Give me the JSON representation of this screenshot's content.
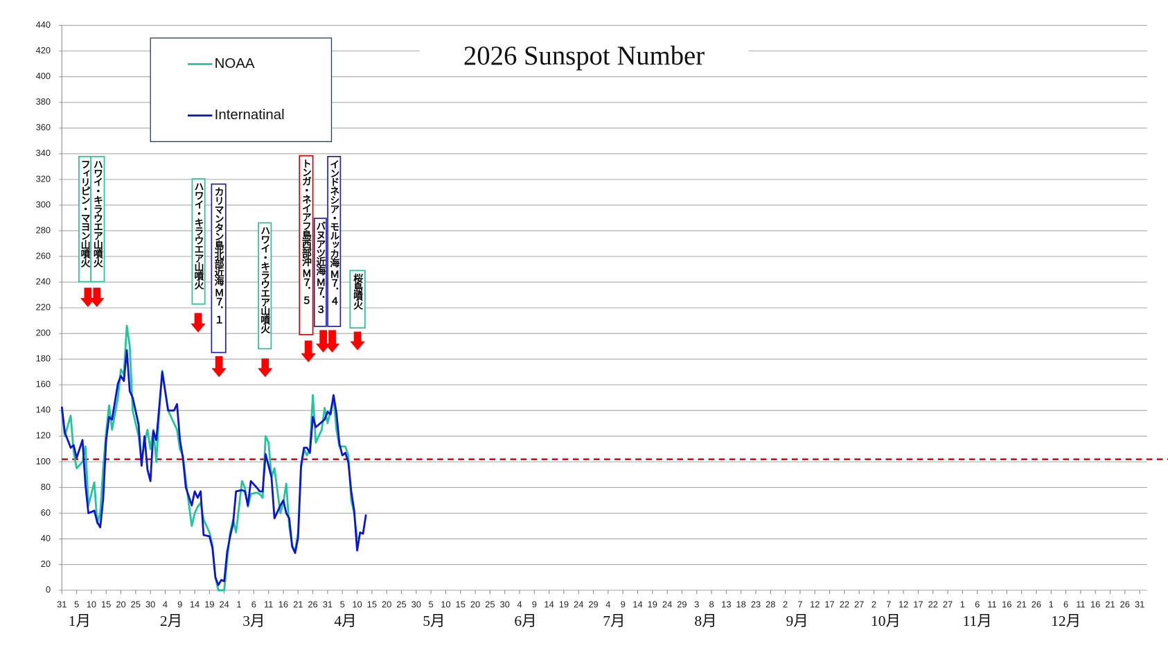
{
  "chart_data": {
    "type": "line",
    "title": "2026 Sunspot Number",
    "x": [
      0,
      1,
      3,
      4,
      5,
      7,
      8,
      9,
      11,
      12,
      13,
      14,
      15,
      16,
      17,
      19,
      20,
      21,
      22,
      23,
      24,
      26,
      27,
      28,
      29,
      30,
      31,
      32,
      33,
      34,
      36,
      38,
      39,
      40,
      41,
      42,
      44,
      45,
      46,
      47,
      48,
      50,
      51,
      52,
      53,
      54,
      55,
      56,
      57,
      58,
      59,
      61,
      62,
      63,
      64,
      66,
      67,
      68,
      69,
      70,
      71,
      72,
      74,
      75,
      76,
      77,
      78,
      79,
      80,
      81,
      82,
      83,
      84,
      85,
      86,
      88,
      89,
      90,
      91,
      92,
      93,
      94,
      95,
      96,
      97,
      98,
      99,
      100,
      101,
      102,
      103
    ],
    "series": [
      {
        "name": "NOAA",
        "color": "#1ec69a",
        "values": [
          140,
          120,
          136,
          108,
          95,
          100,
          112,
          66,
          84,
          52,
          60,
          95,
          123,
          144,
          125,
          150,
          172,
          168,
          206,
          190,
          140,
          120,
          100,
          115,
          125,
          110,
          125,
          100,
          140,
          171,
          140,
          130,
          125,
          110,
          105,
          85,
          50,
          60,
          65,
          68,
          55,
          45,
          35,
          10,
          0,
          0,
          0,
          25,
          45,
          55,
          45,
          85,
          80,
          65,
          75,
          76,
          75,
          72,
          120,
          115,
          88,
          95,
          60,
          68,
          83,
          50,
          35,
          30,
          45,
          95,
          110,
          105,
          110,
          152,
          115,
          125,
          142,
          130,
          140,
          150,
          125,
          112,
          112,
          112,
          105,
          70,
          60,
          40,
          null,
          null,
          null
        ]
      },
      {
        "name": "Internatinal",
        "color": "#0a14d6",
        "values": [
          143,
          123,
          111,
          113,
          103,
          117,
          82,
          60,
          62,
          53,
          49,
          71,
          117,
          135,
          133,
          161,
          167,
          163,
          187,
          155,
          150,
          129,
          97,
          120,
          94,
          85,
          124,
          117,
          143,
          170,
          140,
          140,
          145,
          117,
          103,
          80,
          66,
          77,
          72,
          77,
          43,
          42,
          33,
          10,
          4,
          8,
          7,
          30,
          42,
          52,
          77,
          78,
          77,
          66,
          85,
          80,
          77,
          77,
          106,
          97,
          88,
          56,
          66,
          70,
          60,
          56,
          34,
          29,
          41,
          97,
          111,
          111,
          107,
          135,
          127,
          131,
          133,
          139,
          137,
          152,
          138,
          114,
          105,
          107,
          100,
          77,
          62,
          31,
          45,
          44,
          59
        ]
      }
    ],
    "xlim": [
      0,
      365
    ],
    "xticks": [
      {
        "value": 0,
        "label": "31"
      },
      {
        "value": 5,
        "label": "5"
      },
      {
        "value": 10,
        "label": "10"
      },
      {
        "value": 15,
        "label": "15"
      },
      {
        "value": 20,
        "label": "20"
      },
      {
        "value": 25,
        "label": "25"
      },
      {
        "value": 30,
        "label": "30"
      },
      {
        "value": 35,
        "label": "4"
      },
      {
        "value": 40,
        "label": "9"
      },
      {
        "value": 45,
        "label": "14"
      },
      {
        "value": 50,
        "label": "19"
      },
      {
        "value": 55,
        "label": "24"
      },
      {
        "value": 60,
        "label": "1"
      },
      {
        "value": 65,
        "label": "6"
      },
      {
        "value": 70,
        "label": "11"
      },
      {
        "value": 75,
        "label": "16"
      },
      {
        "value": 80,
        "label": "21"
      },
      {
        "value": 85,
        "label": "26"
      },
      {
        "value": 90,
        "label": "31"
      },
      {
        "value": 95,
        "label": "5"
      },
      {
        "value": 100,
        "label": "10"
      },
      {
        "value": 105,
        "label": "15"
      },
      {
        "value": 110,
        "label": "20"
      },
      {
        "value": 115,
        "label": "25"
      },
      {
        "value": 120,
        "label": "30"
      },
      {
        "value": 125,
        "label": "5"
      },
      {
        "value": 130,
        "label": "10"
      },
      {
        "value": 135,
        "label": "15"
      },
      {
        "value": 140,
        "label": "20"
      },
      {
        "value": 145,
        "label": "25"
      },
      {
        "value": 150,
        "label": "30"
      },
      {
        "value": 155,
        "label": "4"
      },
      {
        "value": 160,
        "label": "9"
      },
      {
        "value": 165,
        "label": "14"
      },
      {
        "value": 170,
        "label": "19"
      },
      {
        "value": 175,
        "label": "24"
      },
      {
        "value": 180,
        "label": "29"
      },
      {
        "value": 185,
        "label": "4"
      },
      {
        "value": 190,
        "label": "9"
      },
      {
        "value": 195,
        "label": "14"
      },
      {
        "value": 200,
        "label": "19"
      },
      {
        "value": 205,
        "label": "24"
      },
      {
        "value": 210,
        "label": "29"
      },
      {
        "value": 215,
        "label": "3"
      },
      {
        "value": 220,
        "label": "8"
      },
      {
        "value": 225,
        "label": "13"
      },
      {
        "value": 230,
        "label": "18"
      },
      {
        "value": 235,
        "label": "23"
      },
      {
        "value": 240,
        "label": "28"
      },
      {
        "value": 245,
        "label": "2"
      },
      {
        "value": 250,
        "label": "7"
      },
      {
        "value": 255,
        "label": "12"
      },
      {
        "value": 260,
        "label": "17"
      },
      {
        "value": 265,
        "label": "22"
      },
      {
        "value": 270,
        "label": "27"
      },
      {
        "value": 275,
        "label": "2"
      },
      {
        "value": 280,
        "label": "7"
      },
      {
        "value": 285,
        "label": "12"
      },
      {
        "value": 290,
        "label": "17"
      },
      {
        "value": 295,
        "label": "22"
      },
      {
        "value": 300,
        "label": "27"
      },
      {
        "value": 305,
        "label": "1"
      },
      {
        "value": 310,
        "label": "6"
      },
      {
        "value": 315,
        "label": "11"
      },
      {
        "value": 320,
        "label": "16"
      },
      {
        "value": 325,
        "label": "21"
      },
      {
        "value": 330,
        "label": "26"
      },
      {
        "value": 335,
        "label": "1"
      },
      {
        "value": 340,
        "label": "6"
      },
      {
        "value": 345,
        "label": "11"
      },
      {
        "value": 350,
        "label": "16"
      },
      {
        "value": 355,
        "label": "21"
      },
      {
        "value": 360,
        "label": "26"
      },
      {
        "value": 365,
        "label": "31"
      }
    ],
    "months": [
      "1月",
      "2月",
      "3月",
      "4月",
      "5月",
      "6月",
      "7月",
      "8月",
      "9月",
      "10月",
      "11月",
      "12月"
    ],
    "ylim": [
      0,
      440
    ],
    "yticks": [
      0,
      20,
      40,
      60,
      80,
      100,
      120,
      140,
      160,
      180,
      200,
      220,
      240,
      260,
      280,
      300,
      320,
      340,
      360,
      380,
      400,
      420,
      440
    ],
    "grid": true,
    "reference_line": {
      "value": 102,
      "color": "#ff0000"
    },
    "annotations": [
      {
        "text": "フィリピン・マヨン山噴火",
        "color": "#1ec69a"
      },
      {
        "text": "ハワイ・キラウエア山噴火",
        "color": "#1ec69a"
      },
      {
        "text": "ハワイ・キラウエア山噴火",
        "color": "#1ec69a"
      },
      {
        "text": "カリマンタン島北部近海 Ｍ７．１",
        "color": "#2020c0"
      },
      {
        "text": "ハワイ・キラウエア山噴火",
        "color": "#1ec69a"
      },
      {
        "text": "トンガ・ネイアフ島西部沖 Ｍ７．５",
        "color": "#e00000"
      },
      {
        "text": "バヌアツ近海 Ｍ７．３",
        "color": "#2020c0"
      },
      {
        "text": "インドネシア・モルッカ海 Ｍ７．４",
        "color": "#2020c0"
      },
      {
        "text": "桜島噴火",
        "color": "#1ec69a"
      }
    ]
  }
}
